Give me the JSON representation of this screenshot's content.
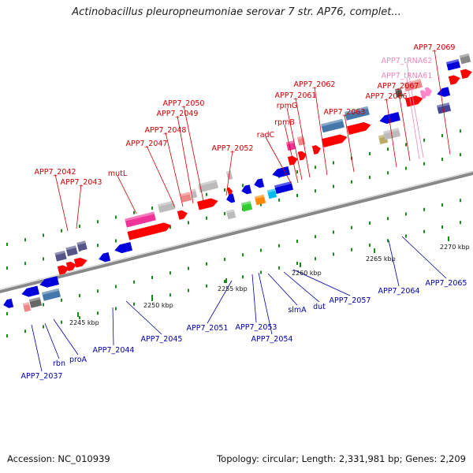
{
  "title": "Actinobacillus pleuropneumoniae serovar 7 str. AP76, complet...",
  "footer": {
    "accession": "Accession: NC_010939",
    "stats": "Topology: circular; Length: 2,331,981 bp; Genes: 2,209"
  },
  "scale_labels": [
    "2245 kbp",
    "2250 kbp",
    "2255 kbp",
    "2260 kbp",
    "2265 kbp",
    "2270 kbp"
  ],
  "top_labels": [
    "APP7_2069",
    "APP7_tRNA62",
    "APP7_tRNA61",
    "APP7_2067",
    "APP7_2066",
    "APP7_2062",
    "APP7_2061",
    "rpmG",
    "rpmB",
    "radC",
    "APP7_2063",
    "APP7_2050",
    "APP7_2049",
    "APP7_2048",
    "APP7_2047",
    "APP7_2052",
    "mutL",
    "APP7_2042",
    "APP7_2043"
  ],
  "bottom_labels": [
    "APP7_2037",
    "rbn",
    "proA",
    "APP7_2044",
    "APP7_2045",
    "APP7_2051",
    "APP7_2053",
    "APP7_2054",
    "slmA",
    "dut",
    "APP7_2057",
    "APP7_2064",
    "APP7_2065"
  ],
  "colors": {
    "forward": "#ff0000",
    "reverse": "#0000dd",
    "trna": "#ff88cc",
    "backbone": "#888888",
    "top_label": "#cc0000",
    "bottom_label": "#0000aa",
    "trna_label": "#ee88bb"
  }
}
